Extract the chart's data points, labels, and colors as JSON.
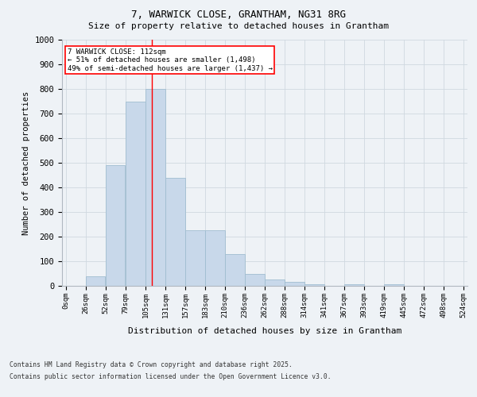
{
  "title_line1": "7, WARWICK CLOSE, GRANTHAM, NG31 8RG",
  "title_line2": "Size of property relative to detached houses in Grantham",
  "xlabel": "Distribution of detached houses by size in Grantham",
  "ylabel": "Number of detached properties",
  "bar_values": [
    0,
    40,
    490,
    750,
    800,
    440,
    225,
    225,
    130,
    50,
    25,
    15,
    8,
    0,
    5,
    0,
    5,
    0,
    0,
    0
  ],
  "bin_labels": [
    "0sqm",
    "26sqm",
    "52sqm",
    "79sqm",
    "105sqm",
    "131sqm",
    "157sqm",
    "183sqm",
    "210sqm",
    "236sqm",
    "262sqm",
    "288sqm",
    "314sqm",
    "341sqm",
    "367sqm",
    "393sqm",
    "419sqm",
    "445sqm",
    "472sqm",
    "498sqm",
    "524sqm"
  ],
  "bar_color": "#c8d8ea",
  "bar_edge_color": "#a0bdd0",
  "grid_color": "#d0d8e0",
  "vline_color": "red",
  "vline_x_bin": 4,
  "annotation_text": "7 WARWICK CLOSE: 112sqm\n← 51% of detached houses are smaller (1,498)\n49% of semi-detached houses are larger (1,437) →",
  "annotation_box_color": "white",
  "annotation_border_color": "red",
  "ylim": [
    0,
    1000
  ],
  "yticks": [
    0,
    100,
    200,
    300,
    400,
    500,
    600,
    700,
    800,
    900,
    1000
  ],
  "footer_line1": "Contains HM Land Registry data © Crown copyright and database right 2025.",
  "footer_line2": "Contains public sector information licensed under the Open Government Licence v3.0.",
  "bg_color": "#eef2f6",
  "plot_bg_color": "#eef2f6",
  "bin_width": 26,
  "n_bars": 20
}
